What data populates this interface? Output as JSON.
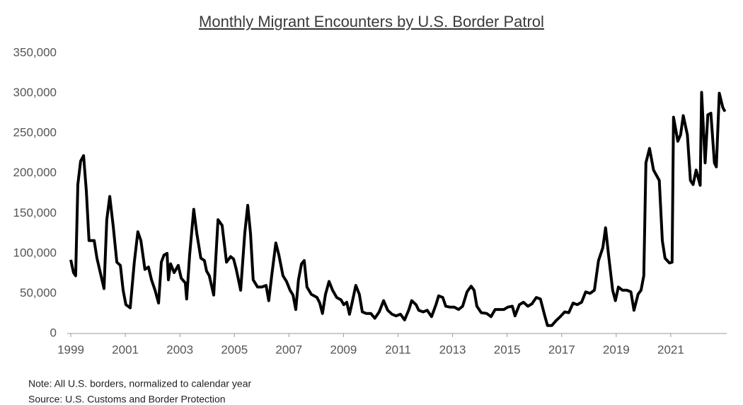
{
  "chart_data": {
    "type": "line",
    "title": "Monthly Migrant Encounters by U.S. Border Patrol",
    "notes": [
      "Note: All U.S. borders, normalized to calendar year",
      "Source: U.S. Customs and Border Protection"
    ],
    "x": [
      1999.0,
      1999.1,
      1999.18,
      1999.26,
      1999.36,
      1999.47,
      1999.57,
      1999.67,
      1999.86,
      1999.96,
      2000.22,
      2000.32,
      2000.43,
      2000.56,
      2000.69,
      2000.82,
      2000.92,
      2001.02,
      2001.18,
      2001.33,
      2001.46,
      2001.57,
      2001.72,
      2001.85,
      2001.96,
      2002.09,
      2002.22,
      2002.32,
      2002.42,
      2002.53,
      2002.58,
      2002.66,
      2002.79,
      2002.94,
      2003.05,
      2003.2,
      2003.25,
      2003.36,
      2003.51,
      2003.62,
      2003.77,
      2003.9,
      2003.98,
      2004.08,
      2004.24,
      2004.4,
      2004.55,
      2004.71,
      2004.86,
      2004.97,
      2005.07,
      2005.23,
      2005.38,
      2005.49,
      2005.59,
      2005.69,
      2005.85,
      2006.0,
      2006.16,
      2006.26,
      2006.37,
      2006.52,
      2006.63,
      2006.78,
      2006.91,
      2007.04,
      2007.15,
      2007.25,
      2007.35,
      2007.46,
      2007.56,
      2007.66,
      2007.82,
      2008.03,
      2008.13,
      2008.23,
      2008.34,
      2008.47,
      2008.6,
      2008.75,
      2008.91,
      2009.01,
      2009.12,
      2009.22,
      2009.32,
      2009.45,
      2009.58,
      2009.69,
      2009.84,
      2010.0,
      2010.15,
      2010.31,
      2010.47,
      2010.62,
      2010.78,
      2010.93,
      2011.09,
      2011.24,
      2011.4,
      2011.5,
      2011.66,
      2011.76,
      2011.92,
      2012.07,
      2012.23,
      2012.39,
      2012.49,
      2012.64,
      2012.75,
      2012.9,
      2013.06,
      2013.22,
      2013.37,
      2013.53,
      2013.68,
      2013.79,
      2013.89,
      2014.05,
      2014.25,
      2014.41,
      2014.56,
      2014.72,
      2014.88,
      2015.03,
      2015.19,
      2015.29,
      2015.45,
      2015.6,
      2015.76,
      2015.91,
      2016.07,
      2016.22,
      2016.38,
      2016.48,
      2016.64,
      2016.79,
      2016.95,
      2017.11,
      2017.26,
      2017.42,
      2017.57,
      2017.73,
      2017.88,
      2018.04,
      2018.2,
      2018.35,
      2018.51,
      2018.61,
      2018.72,
      2018.87,
      2018.97,
      2019.08,
      2019.23,
      2019.39,
      2019.54,
      2019.65,
      2019.8,
      2019.91,
      2020.01,
      2020.09,
      2020.22,
      2020.37,
      2020.58,
      2020.69,
      2020.79,
      2020.95,
      2021.05,
      2021.1,
      2021.26,
      2021.36,
      2021.46,
      2021.61,
      2021.72,
      2021.82,
      2021.93,
      2022.08,
      2022.13,
      2022.26,
      2022.36,
      2022.47,
      2022.6,
      2022.67,
      2022.78,
      2022.91,
      2022.99
    ],
    "series": [
      {
        "color": "#000000",
        "values": [
          92000,
          76000,
          72000,
          186000,
          215000,
          222000,
          178000,
          116000,
          116000,
          94000,
          56000,
          142000,
          171000,
          133000,
          89000,
          85000,
          54000,
          36000,
          32000,
          89000,
          127000,
          116000,
          80000,
          83000,
          67000,
          54000,
          38000,
          89000,
          98000,
          100000,
          67000,
          87000,
          76000,
          85000,
          69000,
          63000,
          43000,
          98000,
          155000,
          125000,
          94000,
          91000,
          78000,
          72000,
          48000,
          142000,
          135000,
          89000,
          96000,
          93000,
          80000,
          54000,
          125000,
          160000,
          125000,
          67000,
          58000,
          58000,
          60000,
          41000,
          73000,
          113000,
          98000,
          72000,
          65000,
          54000,
          48000,
          30000,
          67000,
          87000,
          91000,
          58000,
          49000,
          45000,
          38000,
          25000,
          49000,
          65000,
          54000,
          45000,
          42000,
          36000,
          39000,
          24000,
          39000,
          60000,
          49000,
          27000,
          25000,
          25000,
          19000,
          27000,
          41000,
          29000,
          24000,
          22000,
          24000,
          17000,
          30000,
          41000,
          36000,
          29000,
          27000,
          29000,
          21000,
          36000,
          47000,
          45000,
          34000,
          33000,
          33000,
          30000,
          34000,
          52000,
          59000,
          54000,
          34000,
          26000,
          25000,
          21000,
          30000,
          30000,
          30000,
          33000,
          34000,
          22000,
          36000,
          39000,
          34000,
          37000,
          45000,
          43000,
          22000,
          10000,
          10000,
          16000,
          21000,
          27000,
          26000,
          38000,
          36000,
          39000,
          52000,
          50000,
          54000,
          91000,
          107000,
          132000,
          98000,
          54000,
          41000,
          58000,
          54000,
          54000,
          52000,
          29000,
          49000,
          54000,
          72000,
          213000,
          231000,
          204000,
          191000,
          116000,
          94000,
          88000,
          89000,
          270000,
          240000,
          248000,
          272000,
          248000,
          191000,
          186000,
          204000,
          185000,
          301000,
          213000,
          273000,
          275000,
          213000,
          208000,
          300000,
          282000,
          277000
        ]
      }
    ],
    "xlim": [
      1999,
      2023
    ],
    "xticks": [
      1999,
      2001,
      2003,
      2005,
      2007,
      2009,
      2011,
      2013,
      2015,
      2017,
      2019,
      2021
    ],
    "ylim": [
      0,
      350000
    ],
    "yticks": [
      0,
      {
        "value": 50000,
        "label": "50,000"
      },
      {
        "value": 100000,
        "label": "100,000"
      },
      {
        "value": 150000,
        "label": "150,000"
      },
      {
        "value": 200000,
        "label": "200,000"
      },
      {
        "value": 250000,
        "label": "250,000"
      },
      {
        "value": 300000,
        "label": "300,000"
      },
      {
        "value": 350000,
        "label": "350,000"
      }
    ],
    "grid": false
  }
}
